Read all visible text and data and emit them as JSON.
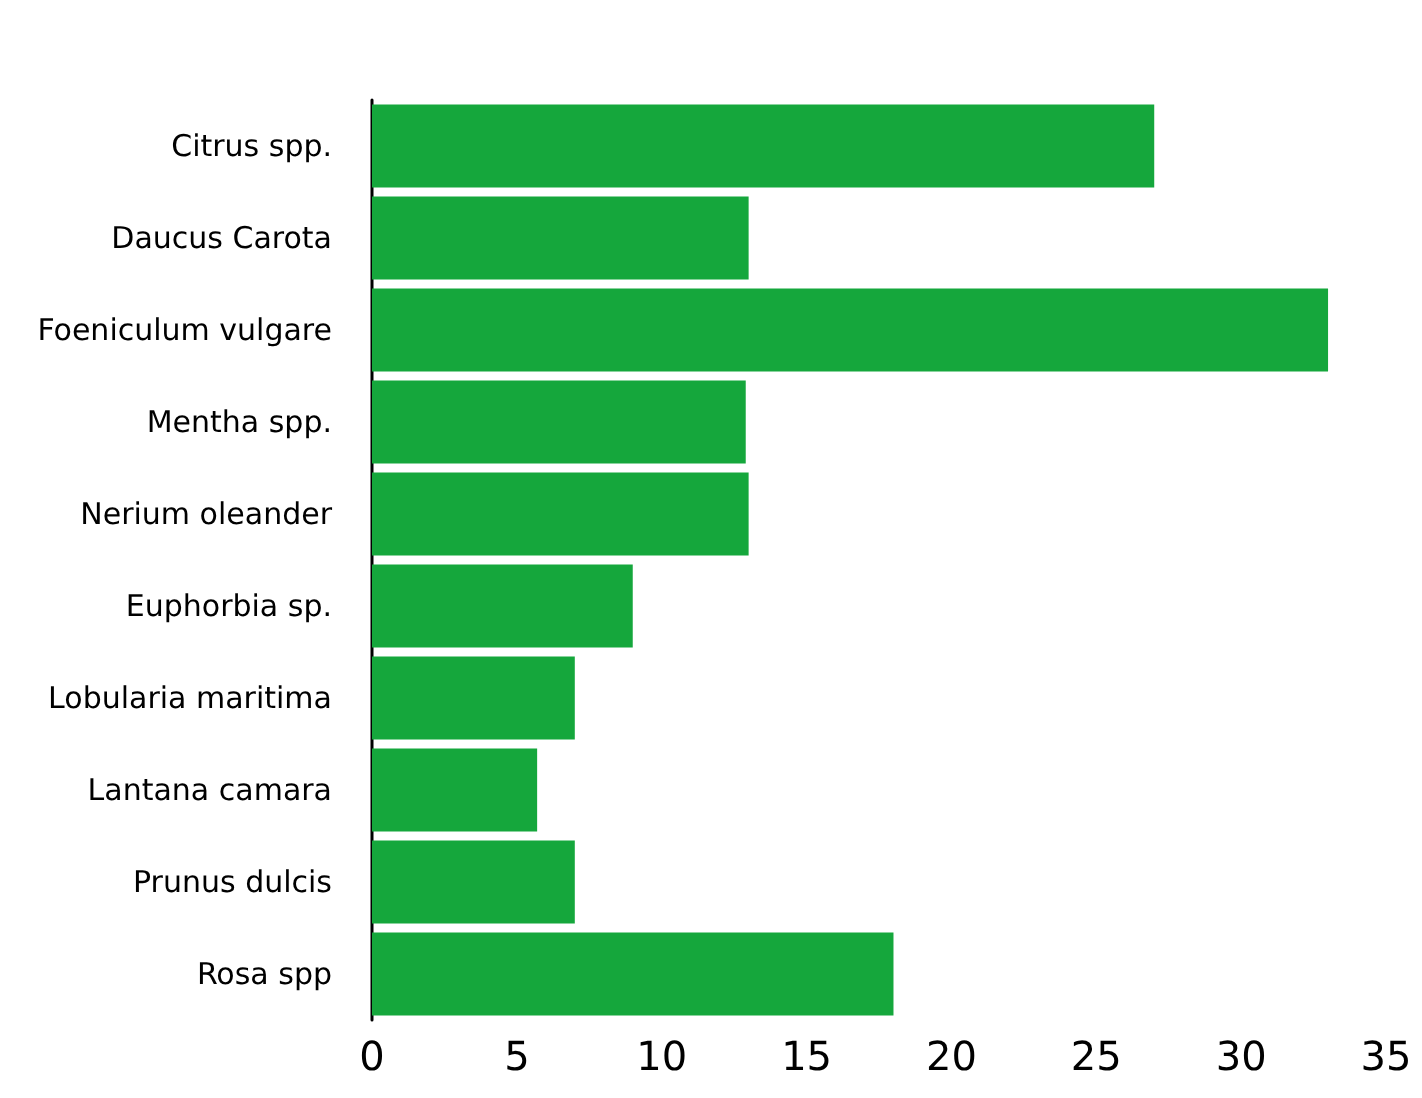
{
  "chart_data": {
    "type": "bar",
    "orientation": "horizontal",
    "categories": [
      "Citrus spp.",
      "Daucus Carota",
      "Foeniculum vulgare",
      "Mentha spp.",
      "Nerium oleander",
      "Euphorbia sp.",
      "Lobularia maritima",
      "Lantana camara",
      "Prunus dulcis",
      "Rosa spp"
    ],
    "values": [
      27,
      13,
      33,
      12.9,
      13,
      9,
      7,
      5.7,
      7,
      18
    ],
    "color": "#15a73c",
    "xlim": [
      0,
      35
    ],
    "xticks": [
      0,
      5,
      10,
      15,
      20,
      25,
      30,
      35
    ],
    "grid": false
  }
}
